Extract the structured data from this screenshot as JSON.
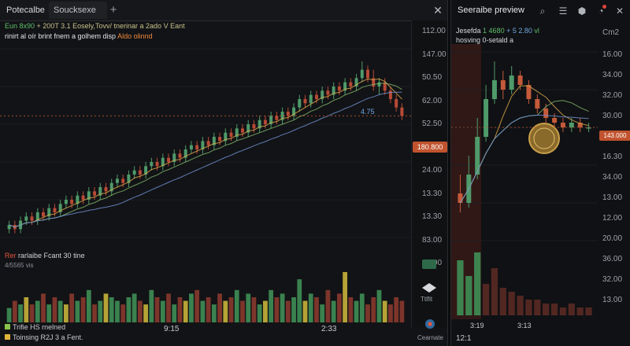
{
  "left_window": {
    "tabs": [
      {
        "label": "Potecalbe"
      },
      {
        "label": "Soucksexe"
      }
    ],
    "add_tab": "+",
    "close": "✕",
    "info_line1": {
      "a": "Eun 8x90",
      "b": "+ 200T 3.1 Eosely,Tovv/ tnerinar a 2ado V Eant"
    },
    "info_line2": {
      "a": "rinirt al oír brint fnem a golhem disp",
      "b": "Aldo olinnd"
    },
    "price_axis": [
      "112.00",
      "147.00",
      "50.50",
      "62.00",
      "52.50",
      "13.30",
      "24.00",
      "13.30",
      "13.30",
      "83.00",
      "12.00"
    ],
    "current_price": "180.800",
    "annotation": "4.75",
    "volume_legend": {
      "a": "Rer",
      "b": "rarlaibe Fcant 30 tine",
      "c": "4/5565 vis"
    },
    "side_label": "Ttlfit",
    "legend": [
      {
        "label": "Trifie HS rnelned",
        "color": "#8bc34a"
      },
      {
        "label": "Toinsing R2J 3 a Fent.",
        "color": "#e0b43a"
      }
    ],
    "time_labels": [
      "9:15",
      "2:33"
    ],
    "compare": "Cearnate"
  },
  "right_window": {
    "title": "Seeraibe preview",
    "icons": [
      "search-icon",
      "list-icon",
      "shield-icon",
      "notification-icon",
      "close-icon"
    ],
    "info_line1": {
      "a": "Jesefda",
      "b": "1 4680",
      "c": "+ 5 2.80",
      "d": "vl"
    },
    "info_line2": "hosving 0-setald a",
    "corner": "Cm2",
    "price_axis": [
      "16.00",
      "34.00",
      "32.00",
      "30.00",
      "13.00",
      "16.30",
      "34.00",
      "13.00",
      "12.00",
      "20.00",
      "36.00",
      "32.00",
      "13.00"
    ],
    "current_price": "143.000",
    "time_labels": [
      "3:19",
      "3:13"
    ],
    "bottom": "12:1"
  },
  "chart_data": [
    {
      "type": "candlestick",
      "name": "left-main-chart",
      "candles": [
        [
          2,
          3,
          1,
          4
        ],
        [
          3,
          2,
          1,
          4
        ],
        [
          2,
          4,
          1,
          5
        ],
        [
          4,
          5,
          3,
          6
        ],
        [
          5,
          4,
          3,
          6
        ],
        [
          4,
          6,
          3,
          7
        ],
        [
          6,
          5,
          4,
          7
        ],
        [
          5,
          7,
          4,
          8
        ],
        [
          7,
          6,
          5,
          8
        ],
        [
          6,
          8,
          5,
          9
        ],
        [
          8,
          9,
          7,
          10
        ],
        [
          9,
          8,
          7,
          10
        ],
        [
          8,
          10,
          7,
          11
        ],
        [
          10,
          9,
          8,
          11
        ],
        [
          9,
          11,
          8,
          12
        ],
        [
          11,
          10,
          9,
          12
        ],
        [
          10,
          12,
          9,
          13
        ],
        [
          12,
          11,
          10,
          13
        ],
        [
          11,
          13,
          10,
          14
        ],
        [
          13,
          14,
          12,
          15
        ],
        [
          14,
          13,
          12,
          15
        ],
        [
          13,
          15,
          12,
          16
        ],
        [
          15,
          16,
          14,
          17
        ],
        [
          16,
          15,
          14,
          17
        ],
        [
          15,
          17,
          14,
          18
        ],
        [
          17,
          18,
          16,
          19
        ],
        [
          18,
          17,
          16,
          19
        ],
        [
          17,
          19,
          16,
          20
        ],
        [
          19,
          18,
          17,
          20
        ],
        [
          18,
          20,
          17,
          21
        ],
        [
          20,
          19,
          18,
          21
        ],
        [
          19,
          21,
          18,
          22
        ],
        [
          21,
          22,
          20,
          23
        ],
        [
          22,
          21,
          20,
          23
        ],
        [
          21,
          23,
          20,
          24
        ],
        [
          23,
          22,
          21,
          24
        ],
        [
          22,
          24,
          21,
          25
        ],
        [
          24,
          23,
          22,
          25
        ],
        [
          23,
          25,
          22,
          26
        ],
        [
          25,
          24,
          23,
          26
        ],
        [
          24,
          26,
          23,
          27
        ],
        [
          26,
          25,
          24,
          27
        ],
        [
          25,
          27,
          24,
          28
        ],
        [
          27,
          26,
          25,
          28
        ],
        [
          26,
          28,
          25,
          29
        ],
        [
          28,
          27,
          26,
          29
        ],
        [
          27,
          29,
          26,
          30
        ],
        [
          29,
          28,
          27,
          30
        ],
        [
          28,
          30,
          27,
          31
        ],
        [
          30,
          29,
          28,
          31
        ],
        [
          29,
          31,
          28,
          32
        ],
        [
          31,
          33,
          30,
          34
        ],
        [
          33,
          32,
          31,
          34
        ],
        [
          32,
          34,
          31,
          35
        ],
        [
          34,
          33,
          32,
          35
        ],
        [
          33,
          35,
          32,
          36
        ],
        [
          35,
          34,
          33,
          36
        ],
        [
          34,
          36,
          33,
          37
        ],
        [
          36,
          35,
          34,
          37
        ],
        [
          35,
          37,
          34,
          38
        ],
        [
          37,
          36,
          35,
          38
        ],
        [
          36,
          38,
          35,
          39
        ],
        [
          38,
          40,
          37,
          42
        ],
        [
          40,
          38,
          37,
          41
        ],
        [
          38,
          36,
          35,
          40
        ],
        [
          36,
          37,
          34,
          38
        ],
        [
          37,
          35,
          34,
          38
        ],
        [
          35,
          33,
          32,
          36
        ],
        [
          33,
          31,
          30,
          34
        ],
        [
          31,
          29,
          28,
          32
        ]
      ],
      "volumes": [
        4,
        6,
        5,
        7,
        5,
        6,
        8,
        5,
        7,
        6,
        5,
        8,
        6,
        7,
        9,
        5,
        6,
        8,
        7,
        6,
        5,
        7,
        8,
        6,
        5,
        9,
        7,
        6,
        8,
        5,
        7,
        6,
        8,
        9,
        6,
        7,
        5,
        8,
        6,
        7,
        9,
        6,
        8,
        7,
        5,
        6,
        9,
        7,
        8,
        6,
        7,
        12,
        6,
        8,
        7,
        5,
        9,
        6,
        8,
        14,
        7,
        6,
        8,
        5,
        7,
        9,
        6,
        5,
        7,
        6
      ],
      "y_range": [
        0,
        45
      ]
    },
    {
      "type": "candlestick",
      "name": "right-preview-chart",
      "candles": [
        [
          10,
          8,
          6,
          14
        ],
        [
          8,
          14,
          7,
          18
        ],
        [
          14,
          22,
          13,
          26
        ],
        [
          22,
          30,
          21,
          33
        ],
        [
          30,
          34,
          29,
          38
        ],
        [
          34,
          32,
          30,
          36
        ],
        [
          32,
          35,
          31,
          37
        ],
        [
          35,
          33,
          32,
          36
        ],
        [
          33,
          30,
          29,
          34
        ],
        [
          30,
          28,
          27,
          31
        ],
        [
          28,
          26,
          25,
          29
        ],
        [
          26,
          25,
          24,
          27
        ],
        [
          25,
          24,
          23,
          26
        ],
        [
          24,
          25,
          23,
          26
        ],
        [
          25,
          24,
          23,
          26
        ],
        [
          24,
          24,
          23,
          25
        ]
      ],
      "volumes": [
        14,
        10,
        16,
        8,
        12,
        7,
        6,
        5,
        4,
        4,
        3,
        3,
        2,
        3,
        2,
        2
      ],
      "y_range": [
        0,
        40
      ]
    }
  ]
}
